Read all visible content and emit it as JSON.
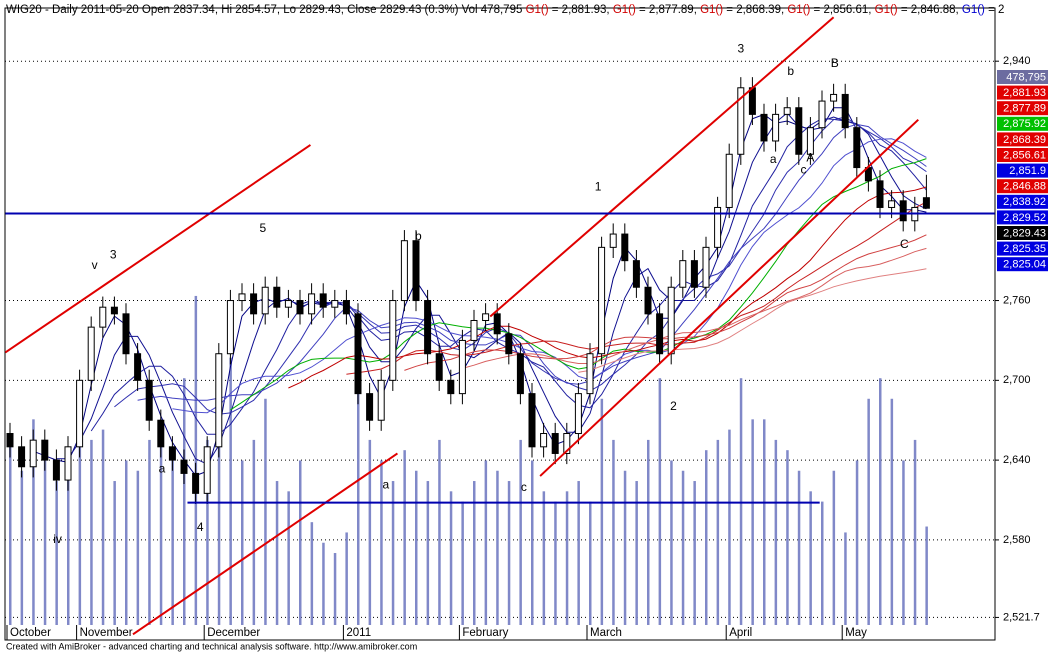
{
  "chart_data": {
    "type": "candlestick",
    "title_parts": [
      {
        "text": "WIG20 - Daily 2011-05-20 Open 2837.34, Hi 2854.57, Lo 2829.43, Close 2829.43 (0.3%) Vol 478,795 ",
        "color": "#000000"
      },
      {
        "text": "G1()",
        "color": "#d00000"
      },
      {
        "text": " = 2,881.93, ",
        "color": "#000000"
      },
      {
        "text": "G1()",
        "color": "#d00000"
      },
      {
        "text": " = 2,877.89, ",
        "color": "#000000"
      },
      {
        "text": "G1()",
        "color": "#d00000"
      },
      {
        "text": " = 2,868.39, ",
        "color": "#000000"
      },
      {
        "text": "G1()",
        "color": "#d00000"
      },
      {
        "text": " = 2,856.61, ",
        "color": "#000000"
      },
      {
        "text": "G1()",
        "color": "#d00000"
      },
      {
        "text": " = 2,846.88, ",
        "color": "#000000"
      },
      {
        "text": "G1()",
        "color": "#0000d0"
      },
      {
        "text": " = 2",
        "color": "#000000"
      }
    ],
    "categories": [
      "October",
      null,
      null,
      null,
      null,
      null,
      "November",
      null,
      null,
      null,
      null,
      null,
      null,
      null,
      null,
      null,
      null,
      "December",
      null,
      null,
      null,
      null,
      null,
      null,
      null,
      null,
      null,
      null,
      null,
      "2011",
      null,
      null,
      null,
      null,
      null,
      null,
      null,
      null,
      null,
      "February",
      null,
      null,
      null,
      null,
      null,
      null,
      null,
      null,
      null,
      null,
      "March",
      null,
      null,
      null,
      null,
      null,
      null,
      null,
      null,
      null,
      null,
      null,
      "April",
      null,
      null,
      null,
      null,
      null,
      null,
      null,
      null,
      null,
      "May",
      null,
      null,
      null,
      null,
      null,
      null,
      null
    ],
    "open": [
      2660,
      2650,
      2635,
      2655,
      2640,
      2625,
      2650,
      2700,
      2740,
      2755,
      2750,
      2720,
      2700,
      2670,
      2650,
      2640,
      2630,
      2615,
      2650,
      2720,
      2760,
      2765,
      2750,
      2770,
      2755,
      2760,
      2750,
      2765,
      2755,
      2760,
      2750,
      2690,
      2670,
      2700,
      2760,
      2805,
      2760,
      2720,
      2700,
      2690,
      2730,
      2745,
      2750,
      2735,
      2720,
      2690,
      2650,
      2660,
      2645,
      2660,
      2690,
      2720,
      2800,
      2810,
      2790,
      2770,
      2750,
      2720,
      2770,
      2790,
      2770,
      2800,
      2830,
      2870,
      2920,
      2900,
      2880,
      2900,
      2905,
      2870,
      2890,
      2910,
      2915,
      2890,
      2860,
      2850,
      2830,
      2835,
      2820,
      2837.34
    ],
    "high": [
      2668,
      2658,
      2663,
      2663,
      2648,
      2658,
      2708,
      2748,
      2763,
      2763,
      2758,
      2728,
      2708,
      2678,
      2658,
      2648,
      2638,
      2658,
      2728,
      2768,
      2773,
      2773,
      2778,
      2778,
      2768,
      2768,
      2773,
      2773,
      2768,
      2768,
      2758,
      2698,
      2708,
      2768,
      2813,
      2813,
      2768,
      2728,
      2708,
      2738,
      2753,
      2758,
      2758,
      2743,
      2728,
      2698,
      2668,
      2668,
      2668,
      2698,
      2728,
      2808,
      2818,
      2818,
      2798,
      2778,
      2758,
      2778,
      2798,
      2798,
      2808,
      2838,
      2878,
      2928,
      2928,
      2908,
      2908,
      2913,
      2913,
      2898,
      2918,
      2923,
      2923,
      2898,
      2868,
      2858,
      2843,
      2843,
      2838,
      2854.57
    ],
    "low": [
      2642,
      2627,
      2627,
      2632,
      2617,
      2617,
      2642,
      2692,
      2732,
      2742,
      2712,
      2692,
      2662,
      2642,
      2632,
      2622,
      2607,
      2607,
      2642,
      2712,
      2752,
      2742,
      2742,
      2747,
      2747,
      2742,
      2742,
      2747,
      2747,
      2742,
      2682,
      2662,
      2662,
      2692,
      2752,
      2752,
      2712,
      2692,
      2682,
      2682,
      2722,
      2737,
      2727,
      2712,
      2682,
      2642,
      2642,
      2637,
      2637,
      2652,
      2682,
      2712,
      2792,
      2782,
      2762,
      2742,
      2712,
      2712,
      2762,
      2762,
      2762,
      2792,
      2822,
      2862,
      2892,
      2872,
      2872,
      2892,
      2862,
      2862,
      2882,
      2902,
      2882,
      2852,
      2842,
      2822,
      2822,
      2812,
      2812,
      2829.43
    ],
    "close": [
      2650,
      2635,
      2655,
      2640,
      2625,
      2650,
      2700,
      2740,
      2755,
      2750,
      2720,
      2700,
      2670,
      2650,
      2640,
      2630,
      2615,
      2650,
      2720,
      2760,
      2765,
      2750,
      2770,
      2755,
      2760,
      2750,
      2765,
      2755,
      2760,
      2750,
      2690,
      2670,
      2700,
      2760,
      2805,
      2760,
      2720,
      2700,
      2690,
      2730,
      2745,
      2750,
      2735,
      2720,
      2690,
      2650,
      2660,
      2645,
      2660,
      2690,
      2720,
      2800,
      2810,
      2790,
      2770,
      2750,
      2720,
      2770,
      2790,
      2770,
      2800,
      2830,
      2870,
      2920,
      2900,
      2880,
      2900,
      2905,
      2870,
      2890,
      2910,
      2915,
      2890,
      2860,
      2850,
      2830,
      2835,
      2820,
      2830,
      2829.43
    ],
    "volume": [
      900000,
      750000,
      1000000,
      800000,
      700000,
      850000,
      1100000,
      900000,
      950000,
      700000,
      800000,
      750000,
      900000,
      1000000,
      850000,
      1200000,
      1600000,
      900000,
      1000000,
      1300000,
      800000,
      900000,
      1100000,
      700000,
      650000,
      800000,
      500000,
      400000,
      350000,
      450000,
      1300000,
      900000,
      800000,
      700000,
      850000,
      750000,
      700000,
      900000,
      650000,
      600000,
      700000,
      800000,
      750000,
      700000,
      900000,
      800000,
      650000,
      600000,
      650000,
      700000,
      600000,
      1100000,
      900000,
      750000,
      700000,
      900000,
      1200000,
      800000,
      750000,
      700000,
      850000,
      900000,
      950000,
      1200000,
      1000000,
      1000000,
      900000,
      850000,
      750000,
      650000,
      600000,
      750000,
      450000,
      800000,
      1100000,
      1200000,
      1100000,
      800000,
      900000,
      478795
    ],
    "volume_color": "#8088c8",
    "vlim": [
      0,
      3000000
    ],
    "ylim": [
      2516,
      2980
    ],
    "yticks": [
      {
        "value": 2940,
        "label": "2,940"
      },
      {
        "value": 2760,
        "label": "2,760"
      },
      {
        "value": 2700,
        "label": "2,700"
      },
      {
        "value": 2640,
        "label": "2,640"
      },
      {
        "value": 2580,
        "label": "2,580"
      },
      {
        "value": 2521.7,
        "label": "2,521.7"
      }
    ],
    "grid": true,
    "averages": [
      {
        "period": 3,
        "color": "#000080"
      },
      {
        "period": 5,
        "color": "#101090"
      },
      {
        "period": 8,
        "color": "#2020a0"
      },
      {
        "period": 10,
        "color": "#3030b0"
      },
      {
        "period": 12,
        "color": "#4040c0"
      },
      {
        "period": 15,
        "color": "#5050d0"
      },
      {
        "period": 20,
        "color": "#00b000"
      },
      {
        "period": 25,
        "color": "#c00000"
      },
      {
        "period": 30,
        "color": "#c82020"
      },
      {
        "period": 35,
        "color": "#d04040"
      },
      {
        "period": 40,
        "color": "#d86060"
      },
      {
        "period": 50,
        "color": "#e08080"
      }
    ],
    "trendlines": [
      {
        "color": "#e00000",
        "x": [
          -0.4,
          25.9
        ],
        "y": [
          2721,
          2877
        ]
      },
      {
        "color": "#e00000",
        "x": [
          10.6,
          33.4
        ],
        "y": [
          2509,
          2645
        ]
      },
      {
        "color": "#e00000",
        "x": [
          45.7,
          78.3
        ],
        "y": [
          2628,
          2896
        ]
      },
      {
        "color": "#e00000",
        "x": [
          41.4,
          71
        ],
        "y": [
          2748,
          2973
        ]
      },
      {
        "color": "#0000b0",
        "x": [
          -0.4,
          84.9
        ],
        "y": [
          2825.5,
          2825.5
        ]
      },
      {
        "color": "#0000b0",
        "x": [
          15.3,
          69.8
        ],
        "y": [
          2608,
          2608
        ]
      }
    ],
    "annotations": [
      {
        "text": "v",
        "x": 7.3,
        "y": 2786
      },
      {
        "text": "3",
        "x": 8.9,
        "y": 2794
      },
      {
        "text": "5",
        "x": 21.8,
        "y": 2814
      },
      {
        "text": "b",
        "x": 35.2,
        "y": 2808
      },
      {
        "text": "1",
        "x": 50.7,
        "y": 2845
      },
      {
        "text": "3",
        "x": 63,
        "y": 2949
      },
      {
        "text": "b",
        "x": 67.3,
        "y": 2932
      },
      {
        "text": "B",
        "x": 71.1,
        "y": 2938
      },
      {
        "text": "a",
        "x": 65.8,
        "y": 2866
      },
      {
        "text": "A",
        "x": 69,
        "y": 2867
      },
      {
        "text": "c",
        "x": 68.4,
        "y": 2858
      },
      {
        "text": "C",
        "x": 77.1,
        "y": 2802
      },
      {
        "text": "2",
        "x": 57.2,
        "y": 2680
      },
      {
        "text": "a",
        "x": 32.4,
        "y": 2621
      },
      {
        "text": "c",
        "x": 44.3,
        "y": 2619
      },
      {
        "text": "4",
        "x": 16.4,
        "y": 2589
      },
      {
        "text": "iv",
        "x": 4.1,
        "y": 2580
      },
      {
        "text": "a",
        "x": 13.1,
        "y": 2633
      }
    ],
    "tags": [
      {
        "label": "478,795",
        "color": "#6c6ca0"
      },
      {
        "label": "2,881.93",
        "color": "#e00000"
      },
      {
        "label": "2,877.89",
        "color": "#e00000"
      },
      {
        "label": "2,875.92",
        "color": "#00c000"
      },
      {
        "label": "2,868.39",
        "color": "#e00000"
      },
      {
        "label": "2,856.61",
        "color": "#e00000"
      },
      {
        "label": "2,851.9",
        "color": "#0000e0"
      },
      {
        "label": "2,846.88",
        "color": "#e00000"
      },
      {
        "label": "2,838.92",
        "color": "#0000e0"
      },
      {
        "label": "2,829.52",
        "color": "#0000e0"
      },
      {
        "label": "2,829.43",
        "color": "#000000"
      },
      {
        "label": "2,825.35",
        "color": "#0000e0"
      },
      {
        "label": "2,825.04",
        "color": "#0000e0"
      }
    ],
    "footer": "Created with AmiBroker - advanced charting and technical analysis software. http://www.amibroker.com"
  }
}
